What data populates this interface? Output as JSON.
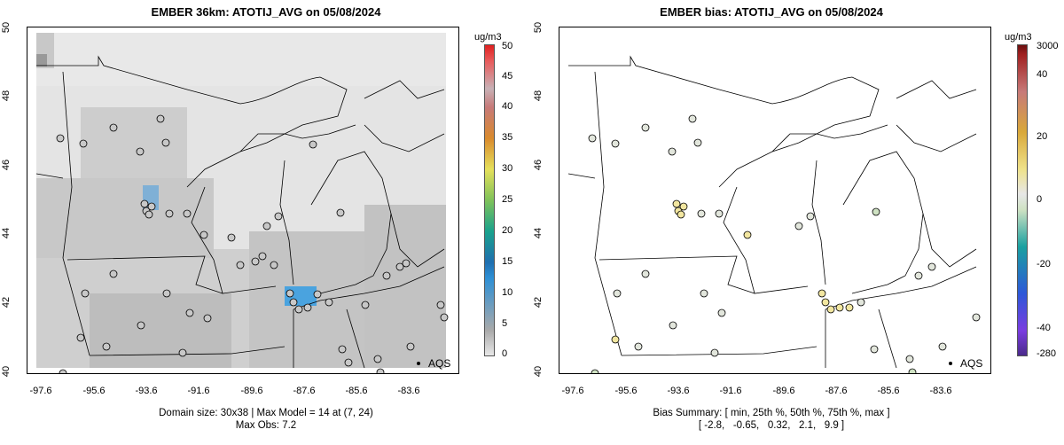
{
  "left": {
    "title": "EMBER 36km: ATOTIJ_AVG on 05/08/2024",
    "y_ticks": [
      "40",
      "42",
      "44",
      "46",
      "48",
      "50"
    ],
    "x_ticks": [
      "-97.6",
      "-95.6",
      "-93.6",
      "-91.6",
      "-89.6",
      "-87.6",
      "-85.6",
      "-83.6"
    ],
    "station_label": "AQS",
    "caption_line1": "Domain size: 30x38 | Max Model = 14 at (7, 24)",
    "caption_line2": "Max Obs: 7.2",
    "colorbar": {
      "unit": "ug/m3",
      "labels": [
        "0",
        "5",
        "10",
        "15",
        "20",
        "25",
        "30",
        "35",
        "40",
        "45",
        "50"
      ]
    }
  },
  "right": {
    "title": "EMBER bias: ATOTIJ_AVG on 05/08/2024",
    "y_ticks": [
      "40",
      "42",
      "44",
      "46",
      "48",
      "50"
    ],
    "x_ticks": [
      "-97.6",
      "-95.6",
      "-93.6",
      "-91.6",
      "-89.6",
      "-87.6",
      "-85.6",
      "-83.6"
    ],
    "station_label": "AQS",
    "caption_line1": "Bias Summary: [ min, 25th %, 50th %, 75th %, max ]",
    "caption_line2": "[ -2.8,   -0.65,   0.32,   2.1,   9.9 ]",
    "colorbar": {
      "unit": "ug/m3",
      "labels": [
        "3000",
        "40",
        "20",
        "0",
        "-20",
        "-40",
        "-280"
      ]
    }
  },
  "colors": {
    "grid_light": "#e3e3e3",
    "grid_mid": "#cdcdcd",
    "grid_dark": "#b4b4b4",
    "hotspot": "#4aa3df",
    "obs_fill": "#c8c8c8",
    "bias_fill": "#e6ebdf"
  }
}
